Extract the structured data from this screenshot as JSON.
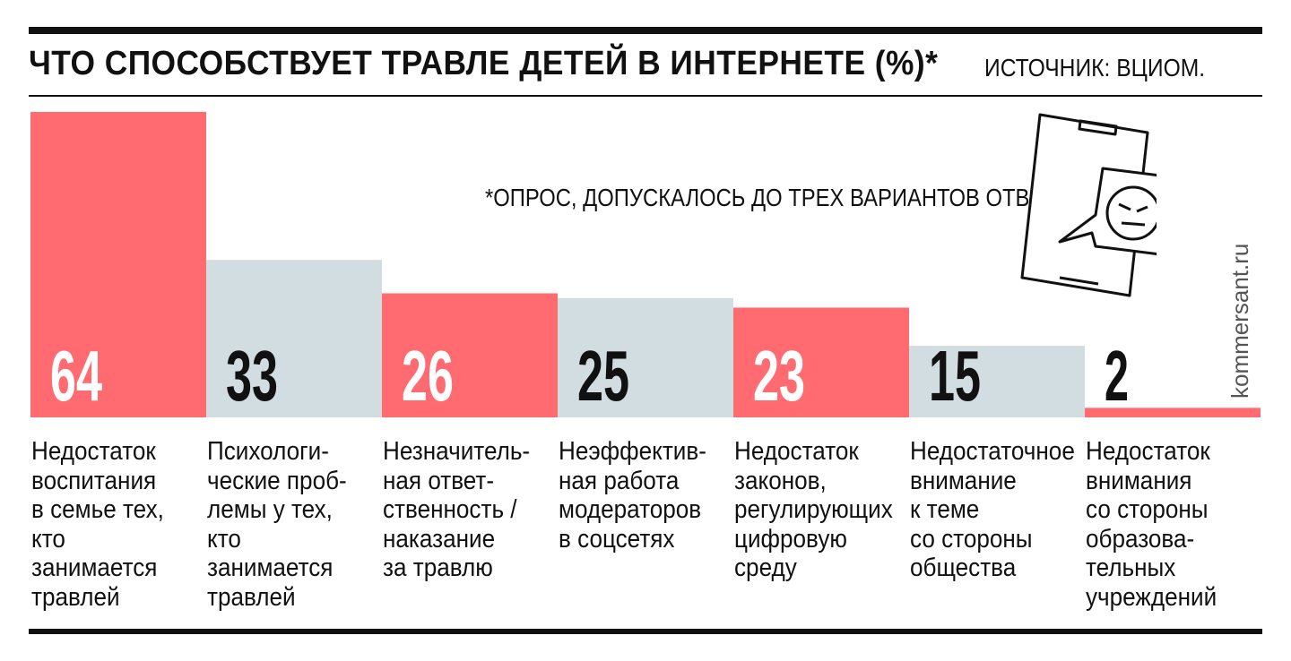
{
  "header": {
    "title": "ЧТО СПОСОБСТВУЕТ ТРАВЛЕ ДЕТЕЙ В ИНТЕРНЕТЕ (%)*",
    "source": "ИСТОЧНИК: ВЦИОМ."
  },
  "note": "*ОПРОС, ДОПУСКАЛОСЬ ДО ТРЕХ ВАРИАНТОВ ОТВЕТА.",
  "credit": "kommersant.ru",
  "illustration": {
    "icon": "angry-phone-message-icon"
  },
  "colors": {
    "red": "#ff6b70",
    "grey": "#d2dde1",
    "value_on_red": "#ffffff",
    "value_on_grey": "#111111"
  },
  "chart_data": {
    "type": "bar",
    "title": "ЧТО СПОСОБСТВУЕТ ТРАВЛЕ ДЕТЕЙ В ИНТЕРНЕТЕ (%)*",
    "categories": [
      "Недостаток\nвоспитания\nв семье тех,\nкто\nзанимается\nтравлей",
      "Психологи-\nческие проб-\nлемы у тех,\nкто\nзанимается\nтравлей",
      "Незначитель-\nная ответ-\nственность /\nнаказание\nза травлю",
      "Неэффектив-\nная работа\nмодераторов\nв соцсетях",
      "Недостаток\nзаконов,\nрегулирующих\nцифровую\nсреду",
      "Недостаточное\nвнимание\nк теме\nсо стороны\nобщества",
      "Недостаток\nвнимания\nсо стороны\nобразова-\nтельных\nучреждений"
    ],
    "values": [
      64,
      33,
      26,
      25,
      23,
      15,
      2
    ],
    "value_labels": [
      "64",
      "33",
      "26",
      "25",
      "23",
      "15",
      "2"
    ],
    "bar_colors": [
      "red",
      "grey",
      "red",
      "grey",
      "red",
      "grey",
      "red"
    ],
    "ylim": [
      0,
      64
    ],
    "grid": false,
    "xlabel": "",
    "ylabel": ""
  }
}
